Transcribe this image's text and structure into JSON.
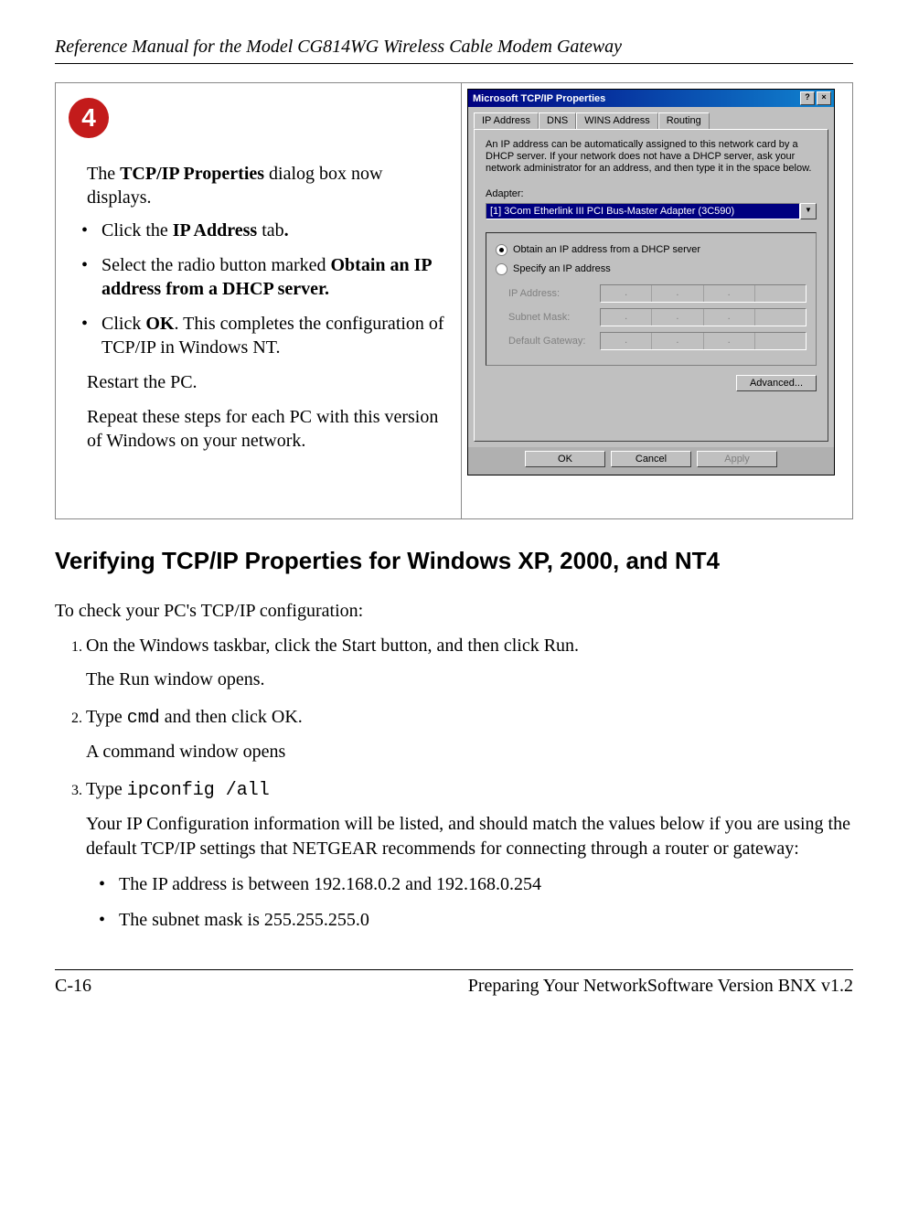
{
  "header": {
    "title": "Reference Manual for the Model CG814WG Wireless Cable Modem Gateway"
  },
  "step": {
    "number": "4",
    "intro_pre": "The ",
    "intro_bold": "TCP/IP Properties",
    "intro_post": " dialog box now displays.",
    "bullets": [
      {
        "pre": "Click the ",
        "b": "IP Address",
        "post": " tab",
        "trail": "."
      },
      {
        "pre": "Select the radio button marked ",
        "b": "Obtain an IP address from a DHCP server.",
        "post": "",
        "trail": ""
      },
      {
        "pre": "Click ",
        "b": "OK",
        "post": ".  This completes the configuration of TCP/IP in Windows NT.",
        "trail": ""
      }
    ],
    "restart": "Restart the PC.",
    "repeat": "Repeat these steps for each PC with this version of Windows on your network."
  },
  "dialog": {
    "title": "Microsoft TCP/IP Properties",
    "help_btn": "?",
    "close_btn": "×",
    "tabs": [
      "IP Address",
      "DNS",
      "WINS Address",
      "Routing"
    ],
    "desc": "An IP address can be automatically assigned to this network card by a DHCP server. If your network does not have a DHCP server, ask your network administrator for an address, and then type it in the space below.",
    "adapter_label": "Adapter:",
    "adapter_value": "[1] 3Com Etherlink III PCI Bus-Master Adapter (3C590)",
    "radio_dhcp": "Obtain an IP address from a DHCP server",
    "radio_specify": "Specify an IP address",
    "ip_label": "IP Address:",
    "subnet_label": "Subnet Mask:",
    "gateway_label": "Default Gateway:",
    "advanced": "Advanced...",
    "ok": "OK",
    "cancel": "Cancel",
    "apply": "Apply"
  },
  "section": {
    "heading": "Verifying TCP/IP Properties for Windows XP, 2000, and NT4",
    "intro": "To check your PC's TCP/IP configuration:",
    "steps": [
      {
        "main": "On the Windows taskbar, click the Start button, and then click Run.",
        "sub": "The Run window opens."
      },
      {
        "pre": "Type ",
        "cmd": "cmd",
        "post": " and then click OK.",
        "sub": "A command window opens"
      },
      {
        "pre": "Type ",
        "cmd": "ipconfig /all",
        "post": "",
        "sub": "Your IP Configuration information will be listed, and should match the values below if you are using the default TCP/IP settings that NETGEAR recommends for connecting through a router or gateway:",
        "bullets": [
          "The IP address is between 192.168.0.2 and 192.168.0.254",
          "The subnet mask is 255.255.255.0"
        ]
      }
    ]
  },
  "footer": {
    "left": "C-16",
    "right": "Preparing Your NetworkSoftware Version BNX v1.2"
  }
}
